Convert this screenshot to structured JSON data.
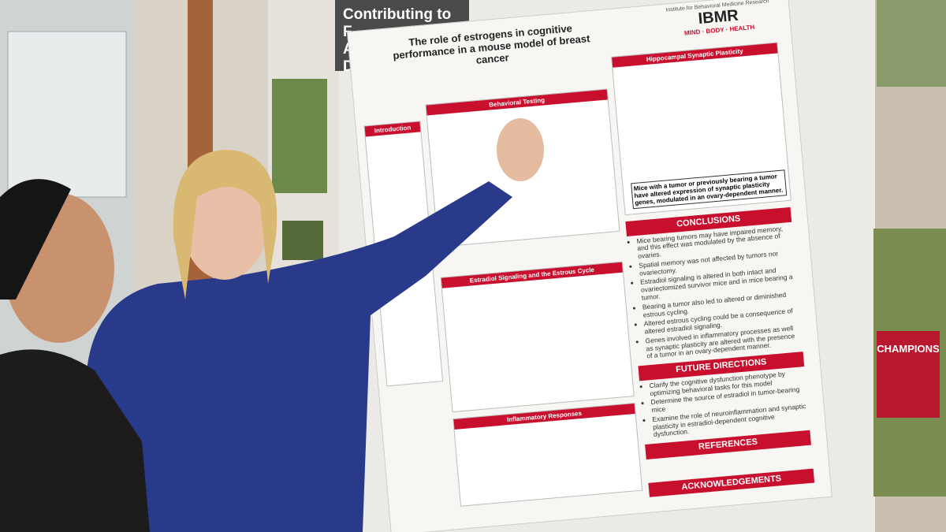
{
  "banner": {
    "lines": [
      "Contributing to F",
      "Approval of CLL Drug"
    ]
  },
  "poster": {
    "title": "The role of estrogens in cognitive performance in a mouse model of breast cancer",
    "logo": {
      "institute": "Institute for Behavioral Medicine Research",
      "name": "IBMR",
      "tagline": "MIND · BODY · HEALTH"
    },
    "panels": [
      "Introduction",
      "Behavioral Testing",
      "Estradiol Signaling and the Estrous Cycle",
      "Inflammatory Responses"
    ],
    "plasticity": {
      "heading": "Hippocampal Synaptic Plasticity",
      "summary": "Mice with a tumor or previously bearing a tumor have altered expression of synaptic plasticity genes, modulated in an ovary-dependent manner."
    },
    "conclusions": {
      "heading": "CONCLUSIONS",
      "items": [
        "Mice bearing tumors may have impaired memory, and this effect was modulated by the absence of ovaries.",
        "Spatial memory was not affected by tumors nor ovariectomy.",
        "Estradiol signaling is altered in both intact and ovariectomized survivor mice and in mice bearing a tumor.",
        "Bearing a tumor also led to altered or diminished estrous cycling.",
        "Altered estrous cycling could be a consequence of altered estradiol signaling.",
        "Genes involved in inflammatory processes as well as synaptic plasticity are altered with the presence of a tumor in an ovary-dependent manner."
      ]
    },
    "future": {
      "heading": "FUTURE DIRECTIONS",
      "items": [
        "Clarify the cognitive dysfunction phenotype by optimizing behavioral tasks for this model",
        "Determine the source of estradiol in tumor-bearing mice",
        "Examine the role of neuroinflammation and synaptic plasticity in estradiol-dependent cognitive dysfunction."
      ]
    },
    "references": {
      "heading": "REFERENCES"
    },
    "acknowledgements": {
      "heading": "ACKNOWLEDGEMENTS"
    }
  },
  "photo": {
    "jersey": "CHAMPIONS"
  }
}
